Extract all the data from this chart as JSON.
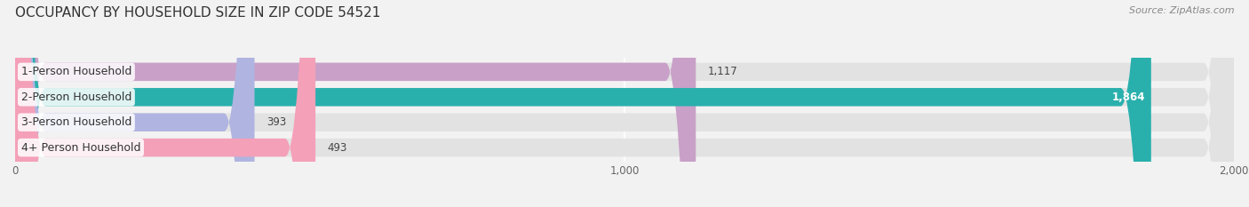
{
  "title": "OCCUPANCY BY HOUSEHOLD SIZE IN ZIP CODE 54521",
  "source": "Source: ZipAtlas.com",
  "categories": [
    "1-Person Household",
    "2-Person Household",
    "3-Person Household",
    "4+ Person Household"
  ],
  "values": [
    1117,
    1864,
    393,
    493
  ],
  "bar_colors": [
    "#c9a0c8",
    "#29b0ad",
    "#b0b4e0",
    "#f4a0b8"
  ],
  "bar_labels": [
    "1,117",
    "1,864",
    "393",
    "493"
  ],
  "label_colors": [
    "#555555",
    "#ffffff",
    "#555555",
    "#555555"
  ],
  "xlim": [
    0,
    2000
  ],
  "xticks": [
    0,
    1000,
    2000
  ],
  "xtick_labels": [
    "0",
    "1,000",
    "2,000"
  ],
  "bg_color": "#f2f2f2",
  "bar_bg_color": "#e2e2e2",
  "title_fontsize": 11,
  "source_fontsize": 8,
  "label_fontsize": 8.5,
  "tick_fontsize": 8.5,
  "category_fontsize": 9
}
